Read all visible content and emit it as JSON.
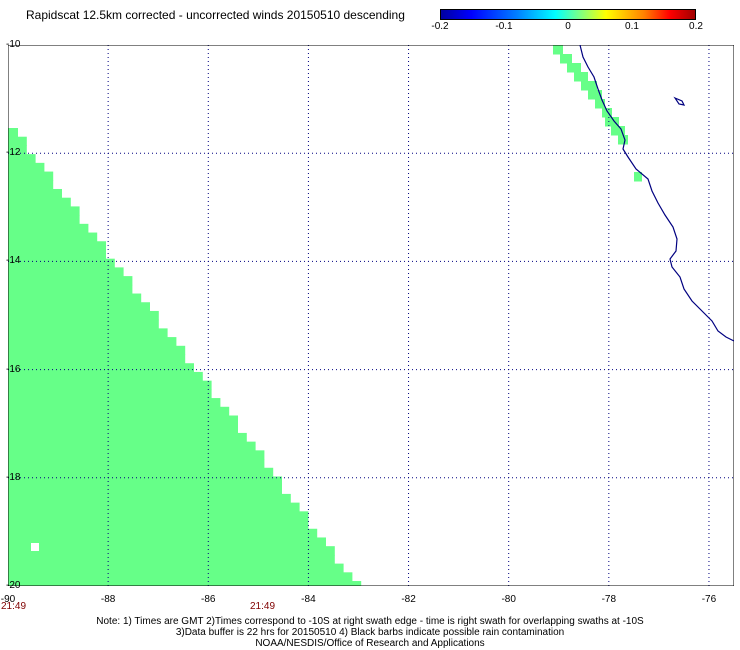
{
  "title": "Rapidscat 12.5km corrected - uncorrected winds 20150510 descending",
  "colorbar": {
    "ticks": [
      {
        "label": "-0.2",
        "frac": 0.0
      },
      {
        "label": "-0.1",
        "frac": 0.25
      },
      {
        "label": "0",
        "frac": 0.5
      },
      {
        "label": "0.1",
        "frac": 0.75
      },
      {
        "label": "0.2",
        "frac": 1.0
      }
    ]
  },
  "axes": {
    "lat_range": [
      -20,
      -10
    ],
    "lon_range": [
      -90,
      -75.5
    ],
    "lat_labels": [
      "-10",
      "-12",
      "-14",
      "-16",
      "-18",
      "-20"
    ],
    "lon_labels": [
      "-90",
      "-88",
      "-86",
      "-84",
      "-82",
      "-80",
      "-78",
      "-76"
    ],
    "grid": "dotted"
  },
  "swath_times": [
    "21:49",
    "21:49"
  ],
  "notes": [
    "Note: 1) Times are GMT 2)Times correspond to -10S at right swath edge - time is right swath for overlapping swaths at -10S",
    "3)Data buffer is 22 hrs for 20150510 4) Black barbs indicate possible rain contamination",
    "NOAA/NESDIS/Office of Research and Applications"
  ],
  "colors": {
    "swath": "#66ff88",
    "coast": "#000080",
    "grid": "#000080"
  }
}
